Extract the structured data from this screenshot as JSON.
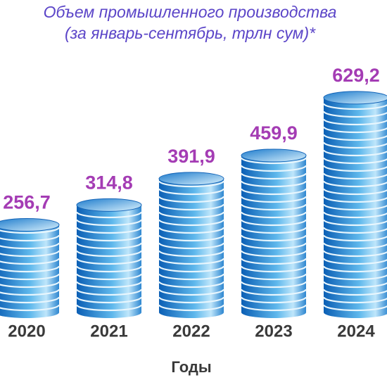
{
  "chart_data": {
    "type": "bar",
    "title": "Объем промышленного производства",
    "subtitle": "(за январь-сентябрь, трлн сум)*",
    "x_label": "Годы",
    "categories": [
      "2020",
      "2021",
      "2022",
      "2023",
      "2024"
    ],
    "values": [
      256.7,
      314.8,
      391.9,
      459.9,
      629.2
    ],
    "value_labels": [
      "256,7",
      "314,8",
      "391,9",
      "459,9",
      "629,2"
    ],
    "color": "#1a78c8"
  }
}
